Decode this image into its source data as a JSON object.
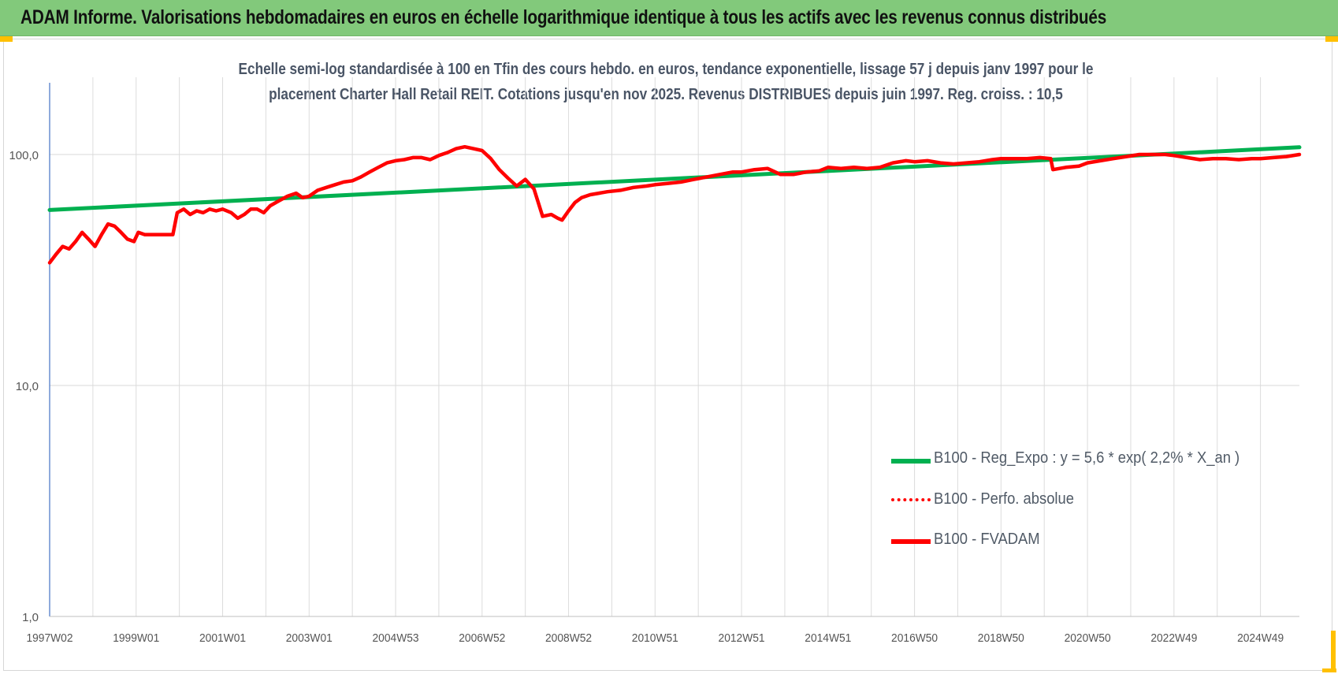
{
  "banner": {
    "title": "ADAM Informe. Valorisations hebdomadaires en euros en échelle logarithmique identique à tous les actifs avec les revenus connus distribués"
  },
  "colors": {
    "banner": "#82c97b",
    "trend": "#00b050",
    "series": "#ff0000",
    "corner_marks": "#ffc000",
    "axis": "#4472c4",
    "grid": "#d9d9d9"
  },
  "chart_data": {
    "type": "line",
    "title_lines": [
      "Echelle semi-log standardisée à 100 en Tfin des cours hebdo. en euros, tendance exponentielle, lissage 57 j depuis janv 1997 pour le",
      "placement Charter Hall Retail REIT. Cotations jusqu'en nov 2025. Revenus DISTRIBUES depuis juin 1997. Reg. croiss. : 10,5"
    ],
    "y_scale": "log",
    "ylim": [
      1,
      200
    ],
    "y_ticks": [
      {
        "value": 1,
        "label": "1,0"
      },
      {
        "value": 10,
        "label": "10,0"
      },
      {
        "value": 100,
        "label": "100,0"
      }
    ],
    "x_range": [
      1997.0,
      2025.9
    ],
    "x_ticks": [
      {
        "x": 1997.0,
        "label": "1997W02"
      },
      {
        "x": 1999.0,
        "label": "1999W01"
      },
      {
        "x": 2001.0,
        "label": "2001W01"
      },
      {
        "x": 2003.0,
        "label": "2003W01"
      },
      {
        "x": 2005.0,
        "label": "2004W53"
      },
      {
        "x": 2007.0,
        "label": "2006W52"
      },
      {
        "x": 2009.0,
        "label": "2008W52"
      },
      {
        "x": 2011.0,
        "label": "2010W51"
      },
      {
        "x": 2013.0,
        "label": "2012W51"
      },
      {
        "x": 2015.0,
        "label": "2014W51"
      },
      {
        "x": 2017.0,
        "label": "2016W50"
      },
      {
        "x": 2019.0,
        "label": "2018W50"
      },
      {
        "x": 2021.0,
        "label": "2020W50"
      },
      {
        "x": 2023.0,
        "label": "2022W49"
      },
      {
        "x": 2025.0,
        "label": "2024W49"
      }
    ],
    "grid": "vertical and horizontal",
    "legend_position": "lower-right",
    "series": [
      {
        "name": "B100 - Reg_Expo : y = 5,6 * exp( 2,2% *  X_an )",
        "color": "#00b050",
        "style": "solid",
        "x": [
          1997.0,
          2025.9
        ],
        "y": [
          57.5,
          107.5
        ]
      },
      {
        "name": "B100 - Perfo. absolue",
        "color": "#ff0000",
        "style": "dotted",
        "x": [],
        "y": []
      },
      {
        "name": "B100 - FVADAM",
        "color": "#ff0000",
        "style": "solid",
        "x": [
          1997.0,
          1997.15,
          1997.3,
          1997.45,
          1997.6,
          1997.75,
          1997.9,
          1998.05,
          1998.2,
          1998.35,
          1998.5,
          1998.65,
          1998.8,
          1998.95,
          1999.05,
          1999.2,
          1999.35,
          1999.5,
          1999.62,
          1999.85,
          1999.95,
          2000.1,
          2000.25,
          2000.4,
          2000.55,
          2000.7,
          2000.85,
          2001.0,
          2001.2,
          2001.35,
          2001.5,
          2001.65,
          2001.8,
          2001.95,
          2002.1,
          2002.3,
          2002.5,
          2002.7,
          2002.85,
          2003.0,
          2003.2,
          2003.4,
          2003.6,
          2003.8,
          2004.0,
          2004.2,
          2004.4,
          2004.6,
          2004.8,
          2005.0,
          2005.2,
          2005.4,
          2005.6,
          2005.8,
          2006.0,
          2006.2,
          2006.4,
          2006.6,
          2006.8,
          2007.0,
          2007.2,
          2007.4,
          2007.6,
          2007.8,
          2008.0,
          2008.2,
          2008.4,
          2008.6,
          2008.75,
          2008.85,
          2009.0,
          2009.15,
          2009.3,
          2009.5,
          2009.7,
          2009.9,
          2010.2,
          2010.5,
          2010.8,
          2011.0,
          2011.3,
          2011.6,
          2011.9,
          2012.2,
          2012.5,
          2012.8,
          2013.0,
          2013.3,
          2013.6,
          2013.9,
          2014.2,
          2014.5,
          2014.8,
          2015.0,
          2015.3,
          2015.6,
          2015.9,
          2016.2,
          2016.5,
          2016.8,
          2017.0,
          2017.3,
          2017.6,
          2017.9,
          2018.2,
          2018.5,
          2018.8,
          2019.0,
          2019.3,
          2019.6,
          2019.9,
          2020.15,
          2020.2,
          2020.5,
          2020.8,
          2021.0,
          2021.3,
          2021.6,
          2021.9,
          2022.2,
          2022.5,
          2022.8,
          2023.0,
          2023.3,
          2023.6,
          2023.9,
          2024.2,
          2024.5,
          2024.8,
          2025.0,
          2025.3,
          2025.6,
          2025.9
        ],
        "y": [
          34,
          37,
          40,
          39,
          42,
          46,
          43,
          40,
          45,
          50,
          49,
          46,
          43,
          42,
          46,
          45,
          45,
          45,
          45,
          45,
          56,
          58,
          55,
          57,
          56,
          58,
          57,
          58,
          56,
          53,
          55,
          58,
          58,
          56,
          60,
          63,
          66,
          68,
          65,
          66,
          70,
          72,
          74,
          76,
          77,
          80,
          84,
          88,
          92,
          94,
          95,
          97,
          97,
          95,
          99,
          102,
          106,
          108,
          106,
          104,
          96,
          86,
          79,
          73,
          78,
          71,
          54,
          55,
          53,
          52,
          57,
          62,
          65,
          67,
          68,
          69,
          70,
          72,
          73,
          74,
          75,
          76,
          78,
          80,
          82,
          84,
          84,
          86,
          87,
          82,
          82,
          84,
          85,
          88,
          87,
          88,
          87,
          88,
          92,
          94,
          93,
          94,
          92,
          91,
          92,
          93,
          95,
          96,
          96,
          96,
          97,
          96,
          86,
          88,
          89,
          92,
          94,
          96,
          98,
          100,
          100,
          100,
          99,
          97,
          95,
          96,
          96,
          95,
          96,
          96,
          97,
          98,
          100
        ]
      }
    ]
  }
}
